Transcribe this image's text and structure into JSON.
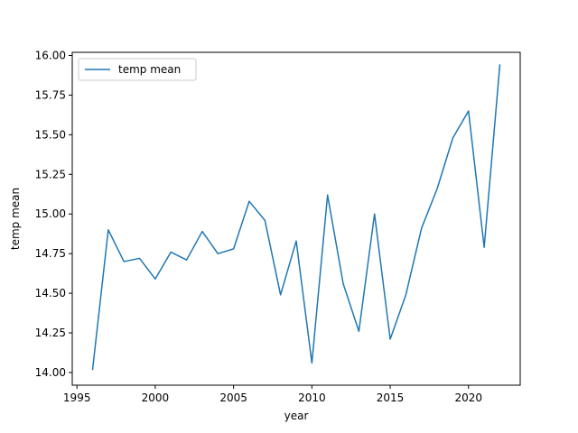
{
  "chart_data": {
    "type": "line",
    "xlabel": "year",
    "ylabel": "temp mean",
    "xlim": [
      1994.7,
      2023.3
    ],
    "ylim": [
      13.92,
      16.02
    ],
    "xticks": [
      1995,
      2000,
      2005,
      2010,
      2015,
      2020
    ],
    "yticks": [
      "14.00",
      "14.25",
      "14.50",
      "14.75",
      "15.00",
      "15.25",
      "15.50",
      "15.75",
      "16.00"
    ],
    "legend_position": "upper-left",
    "grid": false,
    "series": [
      {
        "name": "temp mean",
        "color": "#1f77b4",
        "x": [
          1996,
          1997,
          1998,
          1999,
          2000,
          2001,
          2002,
          2003,
          2004,
          2005,
          2006,
          2007,
          2008,
          2009,
          2010,
          2011,
          2012,
          2013,
          2014,
          2015,
          2016,
          2017,
          2018,
          2019,
          2020,
          2021,
          2022
        ],
        "y": [
          14.02,
          14.9,
          14.7,
          14.72,
          14.59,
          14.76,
          14.71,
          14.89,
          14.75,
          14.78,
          15.08,
          14.96,
          14.49,
          14.83,
          14.06,
          15.12,
          14.56,
          14.26,
          15.0,
          14.21,
          14.49,
          14.91,
          15.16,
          15.48,
          15.65,
          14.79,
          15.94
        ]
      }
    ]
  }
}
